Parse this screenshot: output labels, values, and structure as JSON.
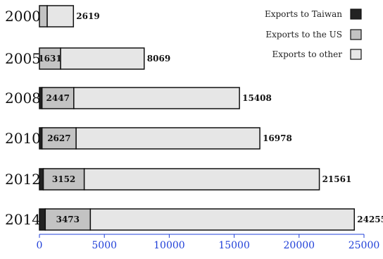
{
  "chart_data": {
    "type": "bar",
    "orientation": "horizontal",
    "stacked": true,
    "categories": [
      "2000",
      "2005",
      "2008",
      "2010",
      "2012",
      "2014"
    ],
    "series": [
      {
        "name": "Exports to Taiwan",
        "color": "#222222",
        "values": [
          0,
          0,
          200,
          200,
          300,
          450
        ]
      },
      {
        "name": "Exports to the US",
        "color": "#c3c3c3",
        "values": [
          600,
          1631,
          2447,
          2627,
          3152,
          3473
        ]
      },
      {
        "name": "Exports to other",
        "color": "#e6e6e6",
        "values": [
          2019,
          6438,
          12761,
          14151,
          18109,
          20332
        ]
      }
    ],
    "us_labels": [
      "",
      "1631",
      "2447",
      "2627",
      "3152",
      "3473"
    ],
    "totals": [
      2619,
      8069,
      15408,
      16978,
      21561,
      24255
    ],
    "total_labels": [
      "2619",
      "8069",
      "15408",
      "16978",
      "21561",
      "24255"
    ],
    "xlim": [
      0,
      25000
    ],
    "xticks": [
      0,
      5000,
      10000,
      15000,
      20000,
      25000
    ],
    "xtick_labels": [
      "0",
      "5000",
      "10000",
      "15000",
      "20000",
      "25000"
    ],
    "legend_position": "top-right",
    "grid": false,
    "title": "",
    "xlabel": "",
    "ylabel": ""
  }
}
